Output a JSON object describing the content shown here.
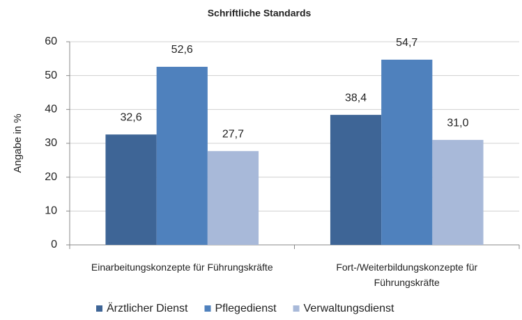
{
  "chart_data": {
    "type": "bar",
    "title": "Schriftliche Standards",
    "y_label": "Angabe in %",
    "categories": [
      "Einarbeitungskonzepte für Führungskräfte",
      "Fort-/Weiterbildungskonzepte für Führungskräfte"
    ],
    "series": [
      {
        "name": "Ärztlicher Dienst",
        "color": "#3e6596",
        "values": [
          32.6,
          38.4
        ],
        "value_labels": [
          "32,6",
          "38,4"
        ]
      },
      {
        "name": "Pflegedienst",
        "color": "#4f81bd",
        "values": [
          52.6,
          54.7
        ],
        "value_labels": [
          "52,6",
          "54,7"
        ]
      },
      {
        "name": "Verwaltungsdienst",
        "color": "#a8b9d9",
        "values": [
          27.7,
          31.0
        ],
        "value_labels": [
          "27,7",
          "31,0"
        ]
      }
    ],
    "ylim": [
      0,
      60
    ],
    "yticks": [
      0,
      10,
      20,
      30,
      40,
      50,
      60
    ],
    "grid": true,
    "legend": "bottom"
  }
}
